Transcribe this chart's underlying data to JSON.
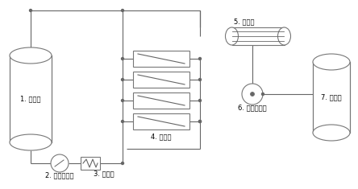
{
  "background_color": "#ffffff",
  "line_color": "#666666",
  "border_color": "#777777",
  "labels": {
    "tank1": "1. 原料罐",
    "pump2": "2. 原料循环泵",
    "hx3": "3. 换热器",
    "membrane4": "4. 膜组件",
    "condenser5": "5. 冷凝器",
    "pump6": "6. 液环真空泵",
    "tank7": "7. 产品罐"
  },
  "font_size": 6.0,
  "fig_width": 4.44,
  "fig_height": 2.35
}
